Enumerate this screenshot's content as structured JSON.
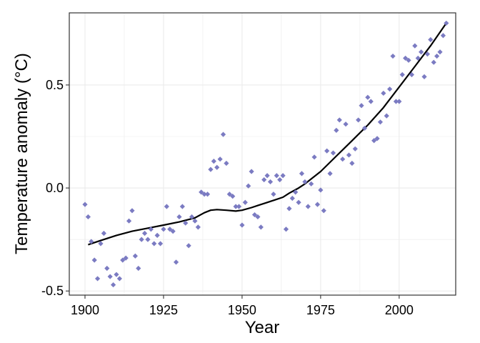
{
  "chart_data": {
    "type": "scatter",
    "xlabel": "Year",
    "ylabel": "Temperature anomaly (°C)",
    "xlim": [
      1895,
      2018
    ],
    "ylim": [
      -0.52,
      0.85
    ],
    "x_ticks": [
      1900,
      1925,
      1950,
      1975,
      2000
    ],
    "x_tick_labels": [
      "1900",
      "1925",
      "1950",
      "1975",
      "2000"
    ],
    "y_ticks": [
      -0.5,
      0.0,
      0.5
    ],
    "y_tick_labels": [
      "-0.5",
      "0.0",
      "0.5"
    ],
    "grid": true,
    "colors": {
      "points": "#7b7bc2",
      "line": "#000000",
      "grid": "#ebebeb",
      "border": "#333333"
    },
    "points": [
      [
        1900,
        -0.08
      ],
      [
        1901,
        -0.14
      ],
      [
        1902,
        -0.26
      ],
      [
        1903,
        -0.35
      ],
      [
        1904,
        -0.44
      ],
      [
        1905,
        -0.27
      ],
      [
        1906,
        -0.22
      ],
      [
        1907,
        -0.39
      ],
      [
        1908,
        -0.43
      ],
      [
        1909,
        -0.47
      ],
      [
        1910,
        -0.42
      ],
      [
        1911,
        -0.44
      ],
      [
        1912,
        -0.35
      ],
      [
        1913,
        -0.34
      ],
      [
        1914,
        -0.16
      ],
      [
        1915,
        -0.11
      ],
      [
        1916,
        -0.33
      ],
      [
        1917,
        -0.39
      ],
      [
        1918,
        -0.25
      ],
      [
        1919,
        -0.22
      ],
      [
        1920,
        -0.25
      ],
      [
        1921,
        -0.2
      ],
      [
        1922,
        -0.27
      ],
      [
        1923,
        -0.23
      ],
      [
        1924,
        -0.27
      ],
      [
        1925,
        -0.2
      ],
      [
        1926,
        -0.09
      ],
      [
        1927,
        -0.2
      ],
      [
        1928,
        -0.21
      ],
      [
        1929,
        -0.36
      ],
      [
        1930,
        -0.14
      ],
      [
        1931,
        -0.09
      ],
      [
        1932,
        -0.17
      ],
      [
        1933,
        -0.28
      ],
      [
        1934,
        -0.14
      ],
      [
        1935,
        -0.16
      ],
      [
        1936,
        -0.19
      ],
      [
        1937,
        -0.02
      ],
      [
        1938,
        -0.03
      ],
      [
        1939,
        -0.03
      ],
      [
        1940,
        0.09
      ],
      [
        1941,
        0.13
      ],
      [
        1942,
        0.1
      ],
      [
        1943,
        0.14
      ],
      [
        1944,
        0.26
      ],
      [
        1945,
        0.12
      ],
      [
        1946,
        -0.03
      ],
      [
        1947,
        -0.04
      ],
      [
        1948,
        -0.09
      ],
      [
        1949,
        -0.09
      ],
      [
        1950,
        -0.18
      ],
      [
        1951,
        -0.07
      ],
      [
        1952,
        0.01
      ],
      [
        1953,
        0.08
      ],
      [
        1954,
        -0.13
      ],
      [
        1955,
        -0.14
      ],
      [
        1956,
        -0.19
      ],
      [
        1957,
        0.04
      ],
      [
        1958,
        0.06
      ],
      [
        1959,
        0.03
      ],
      [
        1960,
        -0.03
      ],
      [
        1961,
        0.06
      ],
      [
        1962,
        0.04
      ],
      [
        1963,
        0.06
      ],
      [
        1964,
        -0.2
      ],
      [
        1965,
        -0.1
      ],
      [
        1966,
        -0.05
      ],
      [
        1967,
        -0.02
      ],
      [
        1968,
        -0.07
      ],
      [
        1969,
        0.07
      ],
      [
        1970,
        0.03
      ],
      [
        1971,
        -0.09
      ],
      [
        1972,
        0.02
      ],
      [
        1973,
        0.15
      ],
      [
        1974,
        -0.08
      ],
      [
        1975,
        -0.01
      ],
      [
        1976,
        -0.11
      ],
      [
        1977,
        0.18
      ],
      [
        1978,
        0.07
      ],
      [
        1979,
        0.17
      ],
      [
        1980,
        0.28
      ],
      [
        1981,
        0.33
      ],
      [
        1982,
        0.14
      ],
      [
        1983,
        0.31
      ],
      [
        1984,
        0.16
      ],
      [
        1985,
        0.12
      ],
      [
        1986,
        0.19
      ],
      [
        1987,
        0.33
      ],
      [
        1988,
        0.4
      ],
      [
        1989,
        0.29
      ],
      [
        1990,
        0.44
      ],
      [
        1991,
        0.42
      ],
      [
        1992,
        0.23
      ],
      [
        1993,
        0.24
      ],
      [
        1994,
        0.32
      ],
      [
        1995,
        0.46
      ],
      [
        1996,
        0.35
      ],
      [
        1997,
        0.48
      ],
      [
        1998,
        0.64
      ],
      [
        1999,
        0.42
      ],
      [
        2000,
        0.42
      ],
      [
        2001,
        0.55
      ],
      [
        2002,
        0.63
      ],
      [
        2003,
        0.62
      ],
      [
        2004,
        0.55
      ],
      [
        2005,
        0.69
      ],
      [
        2006,
        0.63
      ],
      [
        2007,
        0.66
      ],
      [
        2008,
        0.54
      ],
      [
        2009,
        0.65
      ],
      [
        2010,
        0.72
      ],
      [
        2011,
        0.61
      ],
      [
        2012,
        0.64
      ],
      [
        2013,
        0.66
      ],
      [
        2014,
        0.74
      ],
      [
        2015,
        0.8
      ]
    ],
    "smooth_line": [
      [
        1901,
        -0.275
      ],
      [
        1905,
        -0.255
      ],
      [
        1910,
        -0.23
      ],
      [
        1915,
        -0.21
      ],
      [
        1920,
        -0.195
      ],
      [
        1925,
        -0.18
      ],
      [
        1930,
        -0.165
      ],
      [
        1935,
        -0.145
      ],
      [
        1938,
        -0.12
      ],
      [
        1940,
        -0.108
      ],
      [
        1942,
        -0.105
      ],
      [
        1945,
        -0.108
      ],
      [
        1948,
        -0.112
      ],
      [
        1950,
        -0.108
      ],
      [
        1953,
        -0.095
      ],
      [
        1955,
        -0.085
      ],
      [
        1958,
        -0.07
      ],
      [
        1960,
        -0.06
      ],
      [
        1963,
        -0.045
      ],
      [
        1965,
        -0.025
      ],
      [
        1968,
        0.0
      ],
      [
        1970,
        0.02
      ],
      [
        1975,
        0.08
      ],
      [
        1980,
        0.155
      ],
      [
        1985,
        0.23
      ],
      [
        1990,
        0.305
      ],
      [
        1995,
        0.39
      ],
      [
        2000,
        0.49
      ],
      [
        2005,
        0.59
      ],
      [
        2010,
        0.69
      ],
      [
        2015,
        0.8
      ]
    ]
  }
}
